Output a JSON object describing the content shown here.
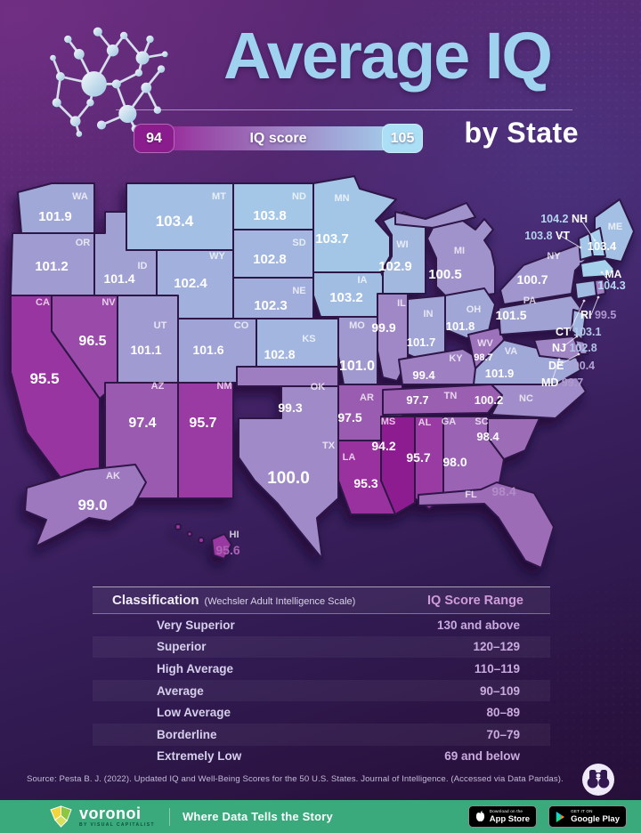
{
  "header": {
    "title": "Average IQ",
    "subtitle": "by State",
    "legend": {
      "min": "94",
      "max": "105",
      "label": "IQ score"
    }
  },
  "chart_data": {
    "type": "heatmap",
    "title": "Average IQ by State",
    "legend": {
      "min": 94,
      "max": 105,
      "label": "IQ score"
    },
    "states": [
      {
        "abbr": "WA",
        "value": "101.9"
      },
      {
        "abbr": "OR",
        "value": "101.2"
      },
      {
        "abbr": "CA",
        "value": "95.5"
      },
      {
        "abbr": "NV",
        "value": "96.5"
      },
      {
        "abbr": "ID",
        "value": "101.4"
      },
      {
        "abbr": "MT",
        "value": "103.4"
      },
      {
        "abbr": "WY",
        "value": "102.4"
      },
      {
        "abbr": "UT",
        "value": "101.1"
      },
      {
        "abbr": "CO",
        "value": "101.6"
      },
      {
        "abbr": "AZ",
        "value": "97.4"
      },
      {
        "abbr": "NM",
        "value": "95.7"
      },
      {
        "abbr": "ND",
        "value": "103.8"
      },
      {
        "abbr": "SD",
        "value": "102.8"
      },
      {
        "abbr": "NE",
        "value": "102.3"
      },
      {
        "abbr": "KS",
        "value": "102.8"
      },
      {
        "abbr": "OK",
        "value": "99.3"
      },
      {
        "abbr": "TX",
        "value": "100.0"
      },
      {
        "abbr": "MN",
        "value": "103.7"
      },
      {
        "abbr": "IA",
        "value": "103.2"
      },
      {
        "abbr": "MO",
        "value": "101.0"
      },
      {
        "abbr": "AR",
        "value": "97.5"
      },
      {
        "abbr": "LA",
        "value": "95.3"
      },
      {
        "abbr": "WI",
        "value": "102.9"
      },
      {
        "abbr": "IL",
        "value": "99.9"
      },
      {
        "abbr": "MS",
        "value": "94.2"
      },
      {
        "abbr": "MI",
        "value": "100.5"
      },
      {
        "abbr": "IN",
        "value": "101.7"
      },
      {
        "abbr": "KY",
        "value": "99.4"
      },
      {
        "abbr": "TN",
        "value": "97.7"
      },
      {
        "abbr": "AL",
        "value": "95.7"
      },
      {
        "abbr": "OH",
        "value": "101.8"
      },
      {
        "abbr": "WV",
        "value": "98.7"
      },
      {
        "abbr": "GA",
        "value": "98.0"
      },
      {
        "abbr": "FL",
        "value": "98.4"
      },
      {
        "abbr": "SC",
        "value": "98.4"
      },
      {
        "abbr": "NC",
        "value": "100.2"
      },
      {
        "abbr": "VA",
        "value": "101.9"
      },
      {
        "abbr": "PA",
        "value": "101.5"
      },
      {
        "abbr": "NY",
        "value": "100.7"
      },
      {
        "abbr": "ME",
        "value": "103.4"
      },
      {
        "abbr": "VT",
        "value": "103.8"
      },
      {
        "abbr": "NH",
        "value": "104.2"
      },
      {
        "abbr": "MA",
        "value": "104.3"
      },
      {
        "abbr": "RI",
        "value": "99.5"
      },
      {
        "abbr": "CT",
        "value": "103.1"
      },
      {
        "abbr": "NJ",
        "value": "102.8"
      },
      {
        "abbr": "DE",
        "value": "100.4"
      },
      {
        "abbr": "MD",
        "value": "99.7"
      },
      {
        "abbr": "AK",
        "value": "99.0"
      },
      {
        "abbr": "HI",
        "value": "95.6"
      }
    ]
  },
  "table": {
    "title": "Classification",
    "title_note": "(Wechsler Adult Intelligence Scale)",
    "range_header": "IQ Score Range",
    "rows": [
      {
        "label": "Very Superior",
        "range": "130 and above"
      },
      {
        "label": "Superior",
        "range": "120–129"
      },
      {
        "label": "High Average",
        "range": "110–119"
      },
      {
        "label": "Average",
        "range": "90–109"
      },
      {
        "label": "Low Average",
        "range": "80–89"
      },
      {
        "label": "Borderline",
        "range": "70–79"
      },
      {
        "label": "Extremely Low",
        "range": "69 and below"
      }
    ]
  },
  "source": "Source: Pesta B. J. (2022). Updated IQ and Well-Being Scores for the 50 U.S. States. Journal of Intelligence. (Accessed via Data Pandas).",
  "footer": {
    "brand": "voronoi",
    "brand_sub": "BY VISUAL CAPITALIST",
    "tagline": "Where Data Tells the Story",
    "badges": [
      {
        "line1": "Download on the",
        "line2": "App Store"
      },
      {
        "line1": "GET IT ON",
        "line2": "Google Play"
      }
    ]
  },
  "colors": {
    "title": "#9ed2ee",
    "footer_bg": "#3aa97c",
    "scale_stops": [
      {
        "v": 94,
        "c": "#8b1c8e"
      },
      {
        "v": 95,
        "c": "#98299b"
      },
      {
        "v": 96,
        "c": "#9a41a5"
      },
      {
        "v": 97,
        "c": "#9954ac"
      },
      {
        "v": 98,
        "c": "#9b64b3"
      },
      {
        "v": 99,
        "c": "#9d78be"
      },
      {
        "v": 100,
        "c": "#a08ac7"
      },
      {
        "v": 101,
        "c": "#a099cf"
      },
      {
        "v": 102,
        "c": "#a0aad9"
      },
      {
        "v": 103,
        "c": "#a2b9e0"
      },
      {
        "v": 104,
        "c": "#a4cbe9"
      },
      {
        "v": 105,
        "c": "#abdff6"
      }
    ]
  }
}
